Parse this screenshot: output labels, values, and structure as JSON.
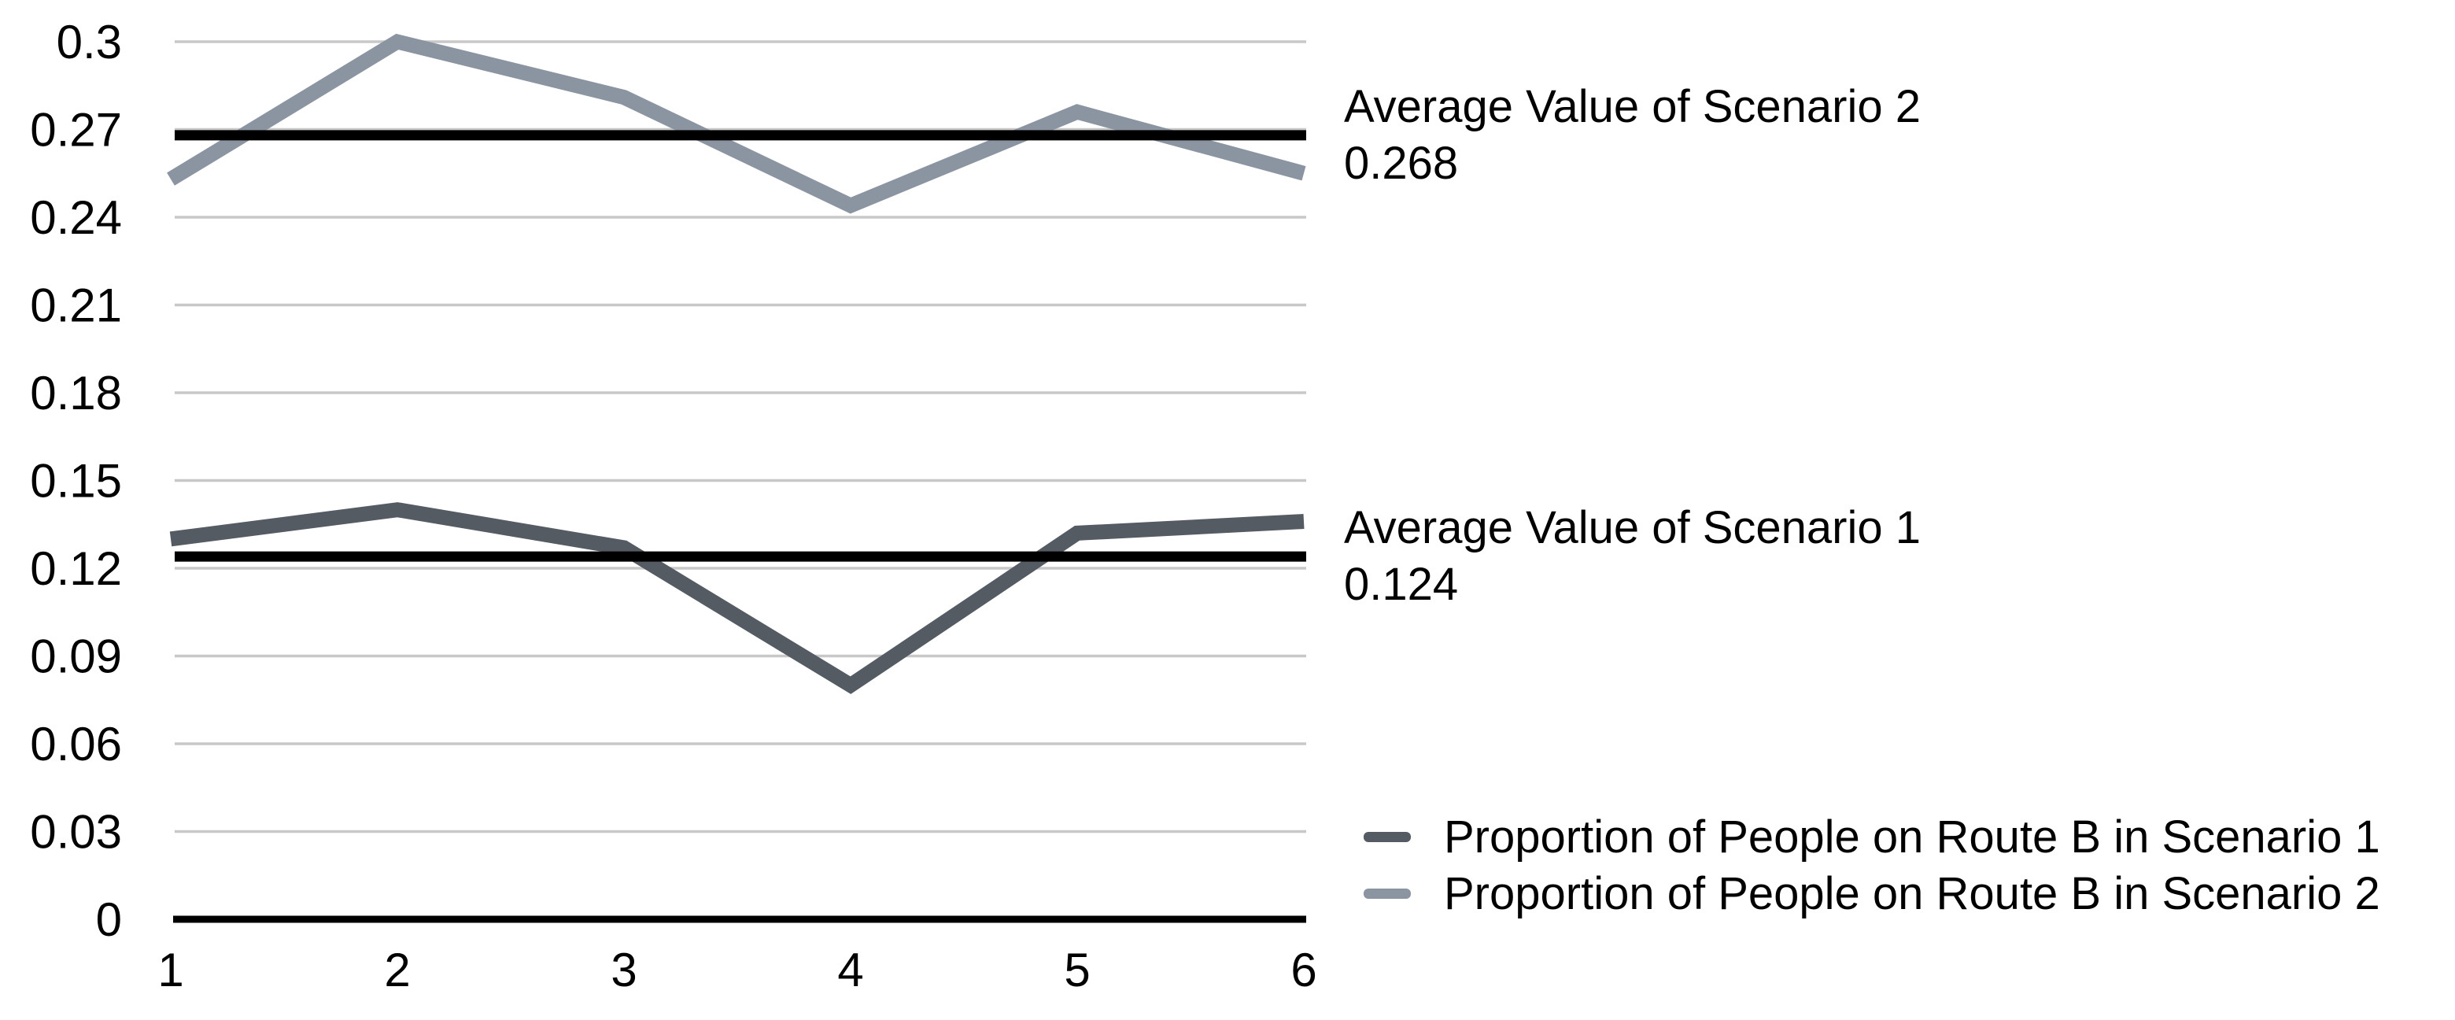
{
  "chart_data": {
    "type": "line",
    "x": [
      1,
      2,
      3,
      4,
      5,
      6
    ],
    "x_axis_ticks": [
      "1",
      "2",
      "3",
      "4",
      "5",
      "6"
    ],
    "y_axis_ticks": [
      "0",
      "0.03",
      "0.06",
      "0.09",
      "0.12",
      "0.15",
      "0.18",
      "0.21",
      "0.24",
      "0.27",
      "0.3"
    ],
    "ylim": [
      0,
      0.3
    ],
    "y_tick_step": 0.03,
    "grid": "horizontal",
    "gridline_color": "#c8c8c8",
    "axis_color": "#000000",
    "background_color": "#ffffff",
    "legend_position": "bottom-right",
    "series": [
      {
        "name": "Proportion of People on Route B in Scenario 1",
        "color": "#545b63",
        "values": [
          0.13,
          0.14,
          0.127,
          0.08,
          0.132,
          0.136
        ]
      },
      {
        "name": "Proportion of People on Route B in Scenario 2",
        "color": "#8b94a1",
        "values": [
          0.253,
          0.3,
          0.281,
          0.244,
          0.276,
          0.255
        ]
      }
    ],
    "reference_lines": [
      {
        "label": "Average Value of Scenario 1",
        "value_label": "0.124",
        "value": 0.124,
        "color": "#000000"
      },
      {
        "label": "Average Value of Scenario 2",
        "value_label": "0.268",
        "value": 0.268,
        "color": "#000000"
      }
    ]
  }
}
